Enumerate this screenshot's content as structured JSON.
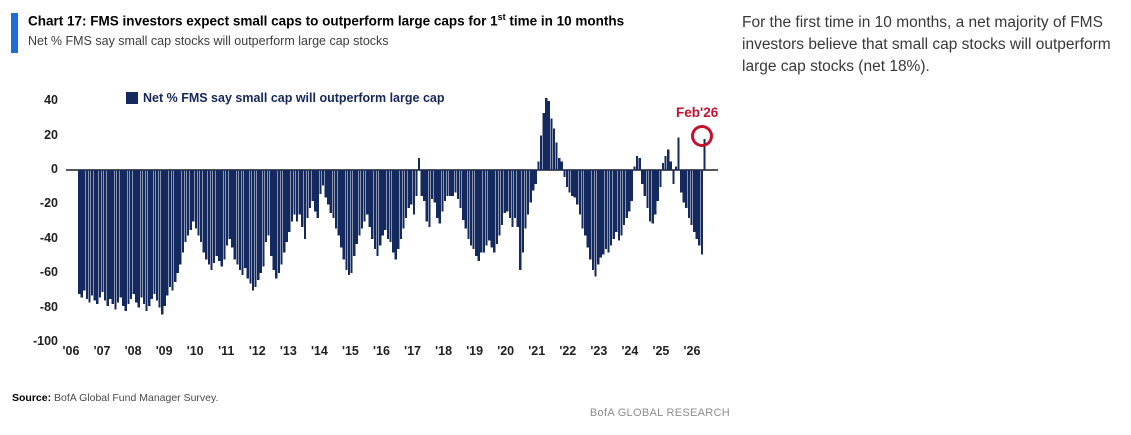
{
  "header": {
    "title_pre": "Chart 17: FMS investors expect small caps to outperform large caps for 1",
    "title_sup": "st",
    "title_post": " time in 10 months",
    "subtitle": "Net % FMS say small cap stocks will outperform large cap stocks",
    "accent_color": "#1f6cd5"
  },
  "commentary": "For the first time in 10 months, a net majority of FMS investors believe that small cap stocks will outperform large cap stocks (net 18%).",
  "chart_data": {
    "type": "bar",
    "title": "Net % FMS say small cap will outperform large cap",
    "legend_label": "Net % FMS say small cap will outperform large cap",
    "bar_color": "#14295e",
    "axis_line_color": "#55565a",
    "ylim": [
      -100,
      40
    ],
    "yticks": [
      40,
      20,
      0,
      -20,
      -40,
      -60,
      -80,
      -100
    ],
    "x_tick_labels": [
      "'06",
      "'07",
      "'08",
      "'09",
      "'10",
      "'11",
      "'12",
      "'13",
      "'14",
      "'15",
      "'16",
      "'17",
      "'18",
      "'19",
      "'20",
      "'21",
      "'22",
      "'23",
      "'24",
      "'25",
      "'26"
    ],
    "frequency": "monthly",
    "x_start": "2006-01",
    "x_end": "2026-02",
    "annotation": {
      "label": "Feb'26",
      "value": 18,
      "color": "#c4122e"
    },
    "series": [
      {
        "name": "Net % FMS say small cap will outperform large cap",
        "values": [
          -72,
          -74,
          -70,
          -75,
          -77,
          -73,
          -76,
          -78,
          -74,
          -71,
          -76,
          -79,
          -75,
          -78,
          -81,
          -77,
          -74,
          -79,
          -82,
          -78,
          -75,
          -72,
          -77,
          -80,
          -74,
          -78,
          -82,
          -79,
          -75,
          -72,
          -76,
          -80,
          -84,
          -79,
          -73,
          -68,
          -70,
          -65,
          -60,
          -55,
          -48,
          -42,
          -38,
          -35,
          -30,
          -34,
          -38,
          -42,
          -48,
          -52,
          -55,
          -58,
          -54,
          -50,
          -53,
          -56,
          -52,
          -44,
          -40,
          -45,
          -52,
          -55,
          -58,
          -61,
          -57,
          -63,
          -66,
          -70,
          -68,
          -64,
          -60,
          -56,
          -42,
          -38,
          -50,
          -58,
          -63,
          -60,
          -55,
          -48,
          -42,
          -36,
          -30,
          -26,
          -30,
          -26,
          -33,
          -40,
          -28,
          -22,
          -18,
          -24,
          -28,
          -14,
          -9,
          -16,
          -20,
          -25,
          -28,
          -34,
          -38,
          -45,
          -52,
          -58,
          -61,
          -60,
          -50,
          -43,
          -38,
          -34,
          -30,
          -26,
          -33,
          -40,
          -46,
          -50,
          -44,
          -38,
          -35,
          -40,
          -42,
          -48,
          -52,
          -46,
          -40,
          -34,
          -28,
          -22,
          -20,
          -26,
          -15,
          7,
          -15,
          -18,
          -30,
          -33,
          -17,
          -19,
          -28,
          -31,
          -24,
          -18,
          -15,
          -15,
          -15,
          -13,
          -17,
          -22,
          -29,
          -34,
          -40,
          -44,
          -46,
          -50,
          -53,
          -48,
          -48,
          -44,
          -41,
          -45,
          -48,
          -43,
          -38,
          -32,
          -25,
          -24,
          -28,
          -33,
          -28,
          -33,
          -58,
          -48,
          -34,
          -26,
          -19,
          -12,
          -8,
          5,
          20,
          33,
          42,
          40,
          30,
          24,
          16,
          7,
          5,
          -4,
          -10,
          -13,
          -15,
          -16,
          -20,
          -26,
          -34,
          -38,
          -45,
          -52,
          -58,
          -62,
          -55,
          -51,
          -49,
          -46,
          -48,
          -44,
          -40,
          -36,
          -41,
          -38,
          -32,
          -28,
          -24,
          -18,
          2,
          8,
          7,
          -8,
          -15,
          -22,
          -30,
          -31,
          -26,
          -18,
          -10,
          4,
          8,
          12,
          5,
          -8,
          2,
          19,
          -13,
          -19,
          -22,
          -28,
          -32,
          -36,
          -40,
          -44,
          -49,
          18
        ]
      }
    ]
  },
  "footer": {
    "source_label": "Source:",
    "source_text": " BofA Global Fund Manager Survey.",
    "brand": "BofA GLOBAL RESEARCH"
  }
}
